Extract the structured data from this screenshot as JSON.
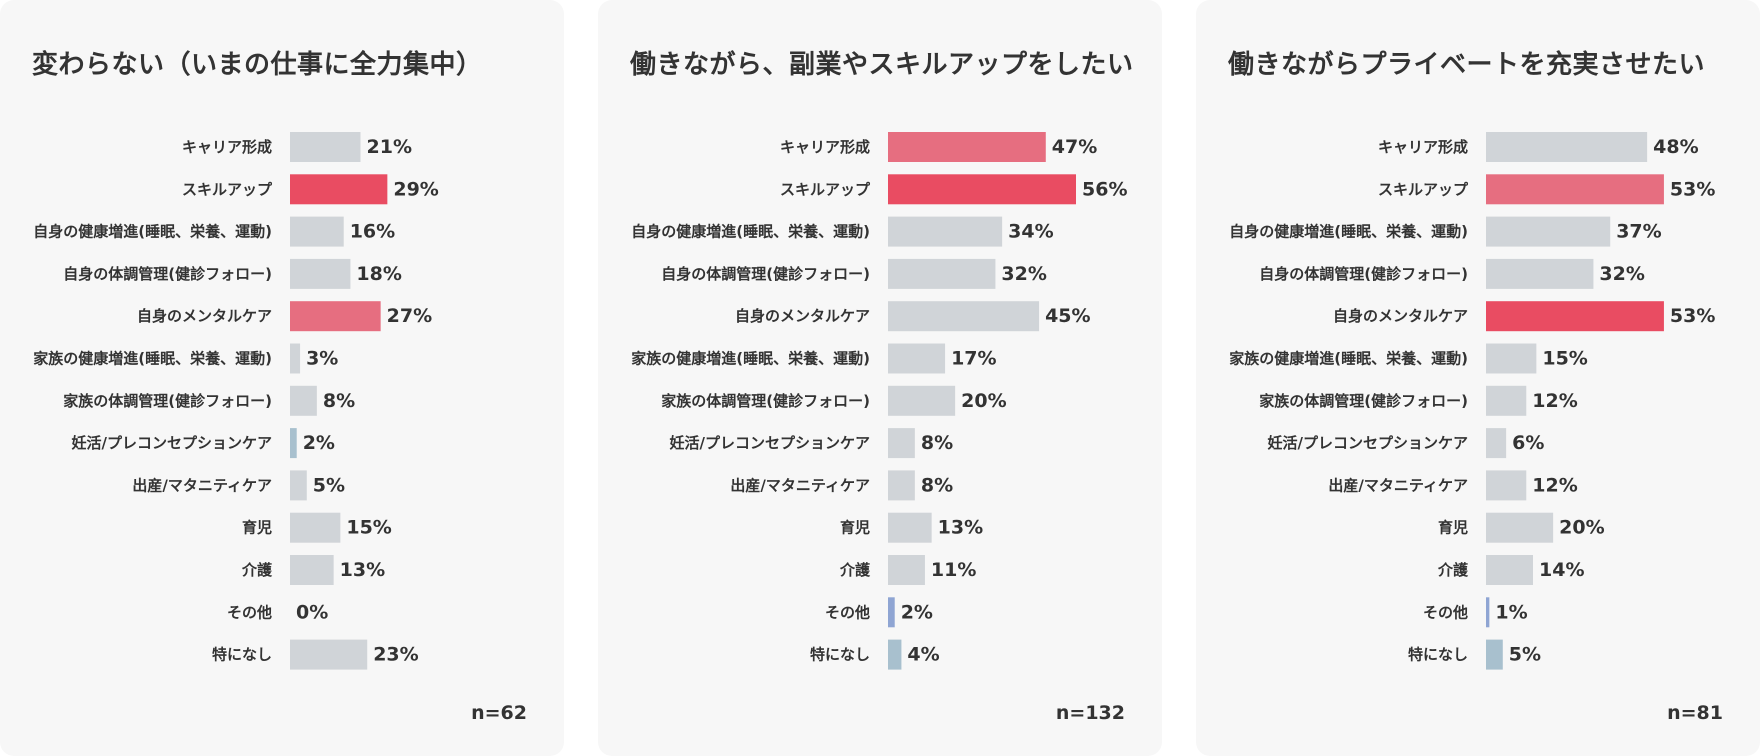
{
  "colors": {
    "highlight_primary": "#e94c62",
    "highlight_secondary": "#e66e80",
    "neutral": "#d0d4d8",
    "accent_blue": "#a8c0ce",
    "accent_periwinkle": "#8fa5d3"
  },
  "chart_data": [
    {
      "type": "bar",
      "orientation": "horizontal",
      "title": "変わらない（いまの仕事に全力集中）",
      "n": "n=62",
      "categories": [
        "キャリア形成",
        "スキルアップ",
        "自身の健康増進(睡眠、栄養、運動)",
        "自身の体調管理(健診フォロー)",
        "自身のメンタルケア",
        "家族の健康増進(睡眠、栄養、運動)",
        "家族の体調管理(健診フォロー)",
        "妊活/プレコンセプションケア",
        "出産/マタニティケア",
        "育児",
        "介護",
        "その他",
        "特になし"
      ],
      "values": [
        21,
        29,
        16,
        18,
        27,
        3,
        8,
        2,
        5,
        15,
        13,
        0,
        23
      ],
      "value_labels": [
        "21%",
        "29%",
        "16%",
        "18%",
        "27%",
        "3%",
        "8%",
        "2%",
        "5%",
        "15%",
        "13%",
        "0%",
        "23%"
      ],
      "bar_colors": [
        "neutral",
        "highlight_primary",
        "neutral",
        "neutral",
        "highlight_secondary",
        "neutral",
        "neutral",
        "accent_blue",
        "neutral",
        "neutral",
        "neutral",
        "neutral",
        "neutral"
      ],
      "xlim": [
        0,
        56
      ]
    },
    {
      "type": "bar",
      "orientation": "horizontal",
      "title": "働きながら、副業やスキルアップをしたい",
      "n": "n=132",
      "categories": [
        "キャリア形成",
        "スキルアップ",
        "自身の健康増進(睡眠、栄養、運動)",
        "自身の体調管理(健診フォロー)",
        "自身のメンタルケア",
        "家族の健康増進(睡眠、栄養、運動)",
        "家族の体調管理(健診フォロー)",
        "妊活/プレコンセプションケア",
        "出産/マタニティケア",
        "育児",
        "介護",
        "その他",
        "特になし"
      ],
      "values": [
        47,
        56,
        34,
        32,
        45,
        17,
        20,
        8,
        8,
        13,
        11,
        2,
        4
      ],
      "value_labels": [
        "47%",
        "56%",
        "34%",
        "32%",
        "45%",
        "17%",
        "20%",
        "8%",
        "8%",
        "13%",
        "11%",
        "2%",
        "4%"
      ],
      "bar_colors": [
        "highlight_secondary",
        "highlight_primary",
        "neutral",
        "neutral",
        "neutral",
        "neutral",
        "neutral",
        "neutral",
        "neutral",
        "neutral",
        "neutral",
        "accent_periwinkle",
        "accent_blue"
      ],
      "xlim": [
        0,
        56
      ]
    },
    {
      "type": "bar",
      "orientation": "horizontal",
      "title": "働きながらプライベートを充実させたい",
      "n": "n=81",
      "categories": [
        "キャリア形成",
        "スキルアップ",
        "自身の健康増進(睡眠、栄養、運動)",
        "自身の体調管理(健診フォロー)",
        "自身のメンタルケア",
        "家族の健康増進(睡眠、栄養、運動)",
        "家族の体調管理(健診フォロー)",
        "妊活/プレコンセプションケア",
        "出産/マタニティケア",
        "育児",
        "介護",
        "その他",
        "特になし"
      ],
      "values": [
        48,
        53,
        37,
        32,
        53,
        15,
        12,
        6,
        12,
        20,
        14,
        1,
        5
      ],
      "value_labels": [
        "48%",
        "53%",
        "37%",
        "32%",
        "53%",
        "15%",
        "12%",
        "6%",
        "12%",
        "20%",
        "14%",
        "1%",
        "5%"
      ],
      "bar_colors": [
        "neutral",
        "highlight_secondary",
        "neutral",
        "neutral",
        "highlight_primary",
        "neutral",
        "neutral",
        "neutral",
        "neutral",
        "neutral",
        "neutral",
        "accent_periwinkle",
        "accent_blue"
      ],
      "xlim": [
        0,
        56
      ]
    }
  ]
}
